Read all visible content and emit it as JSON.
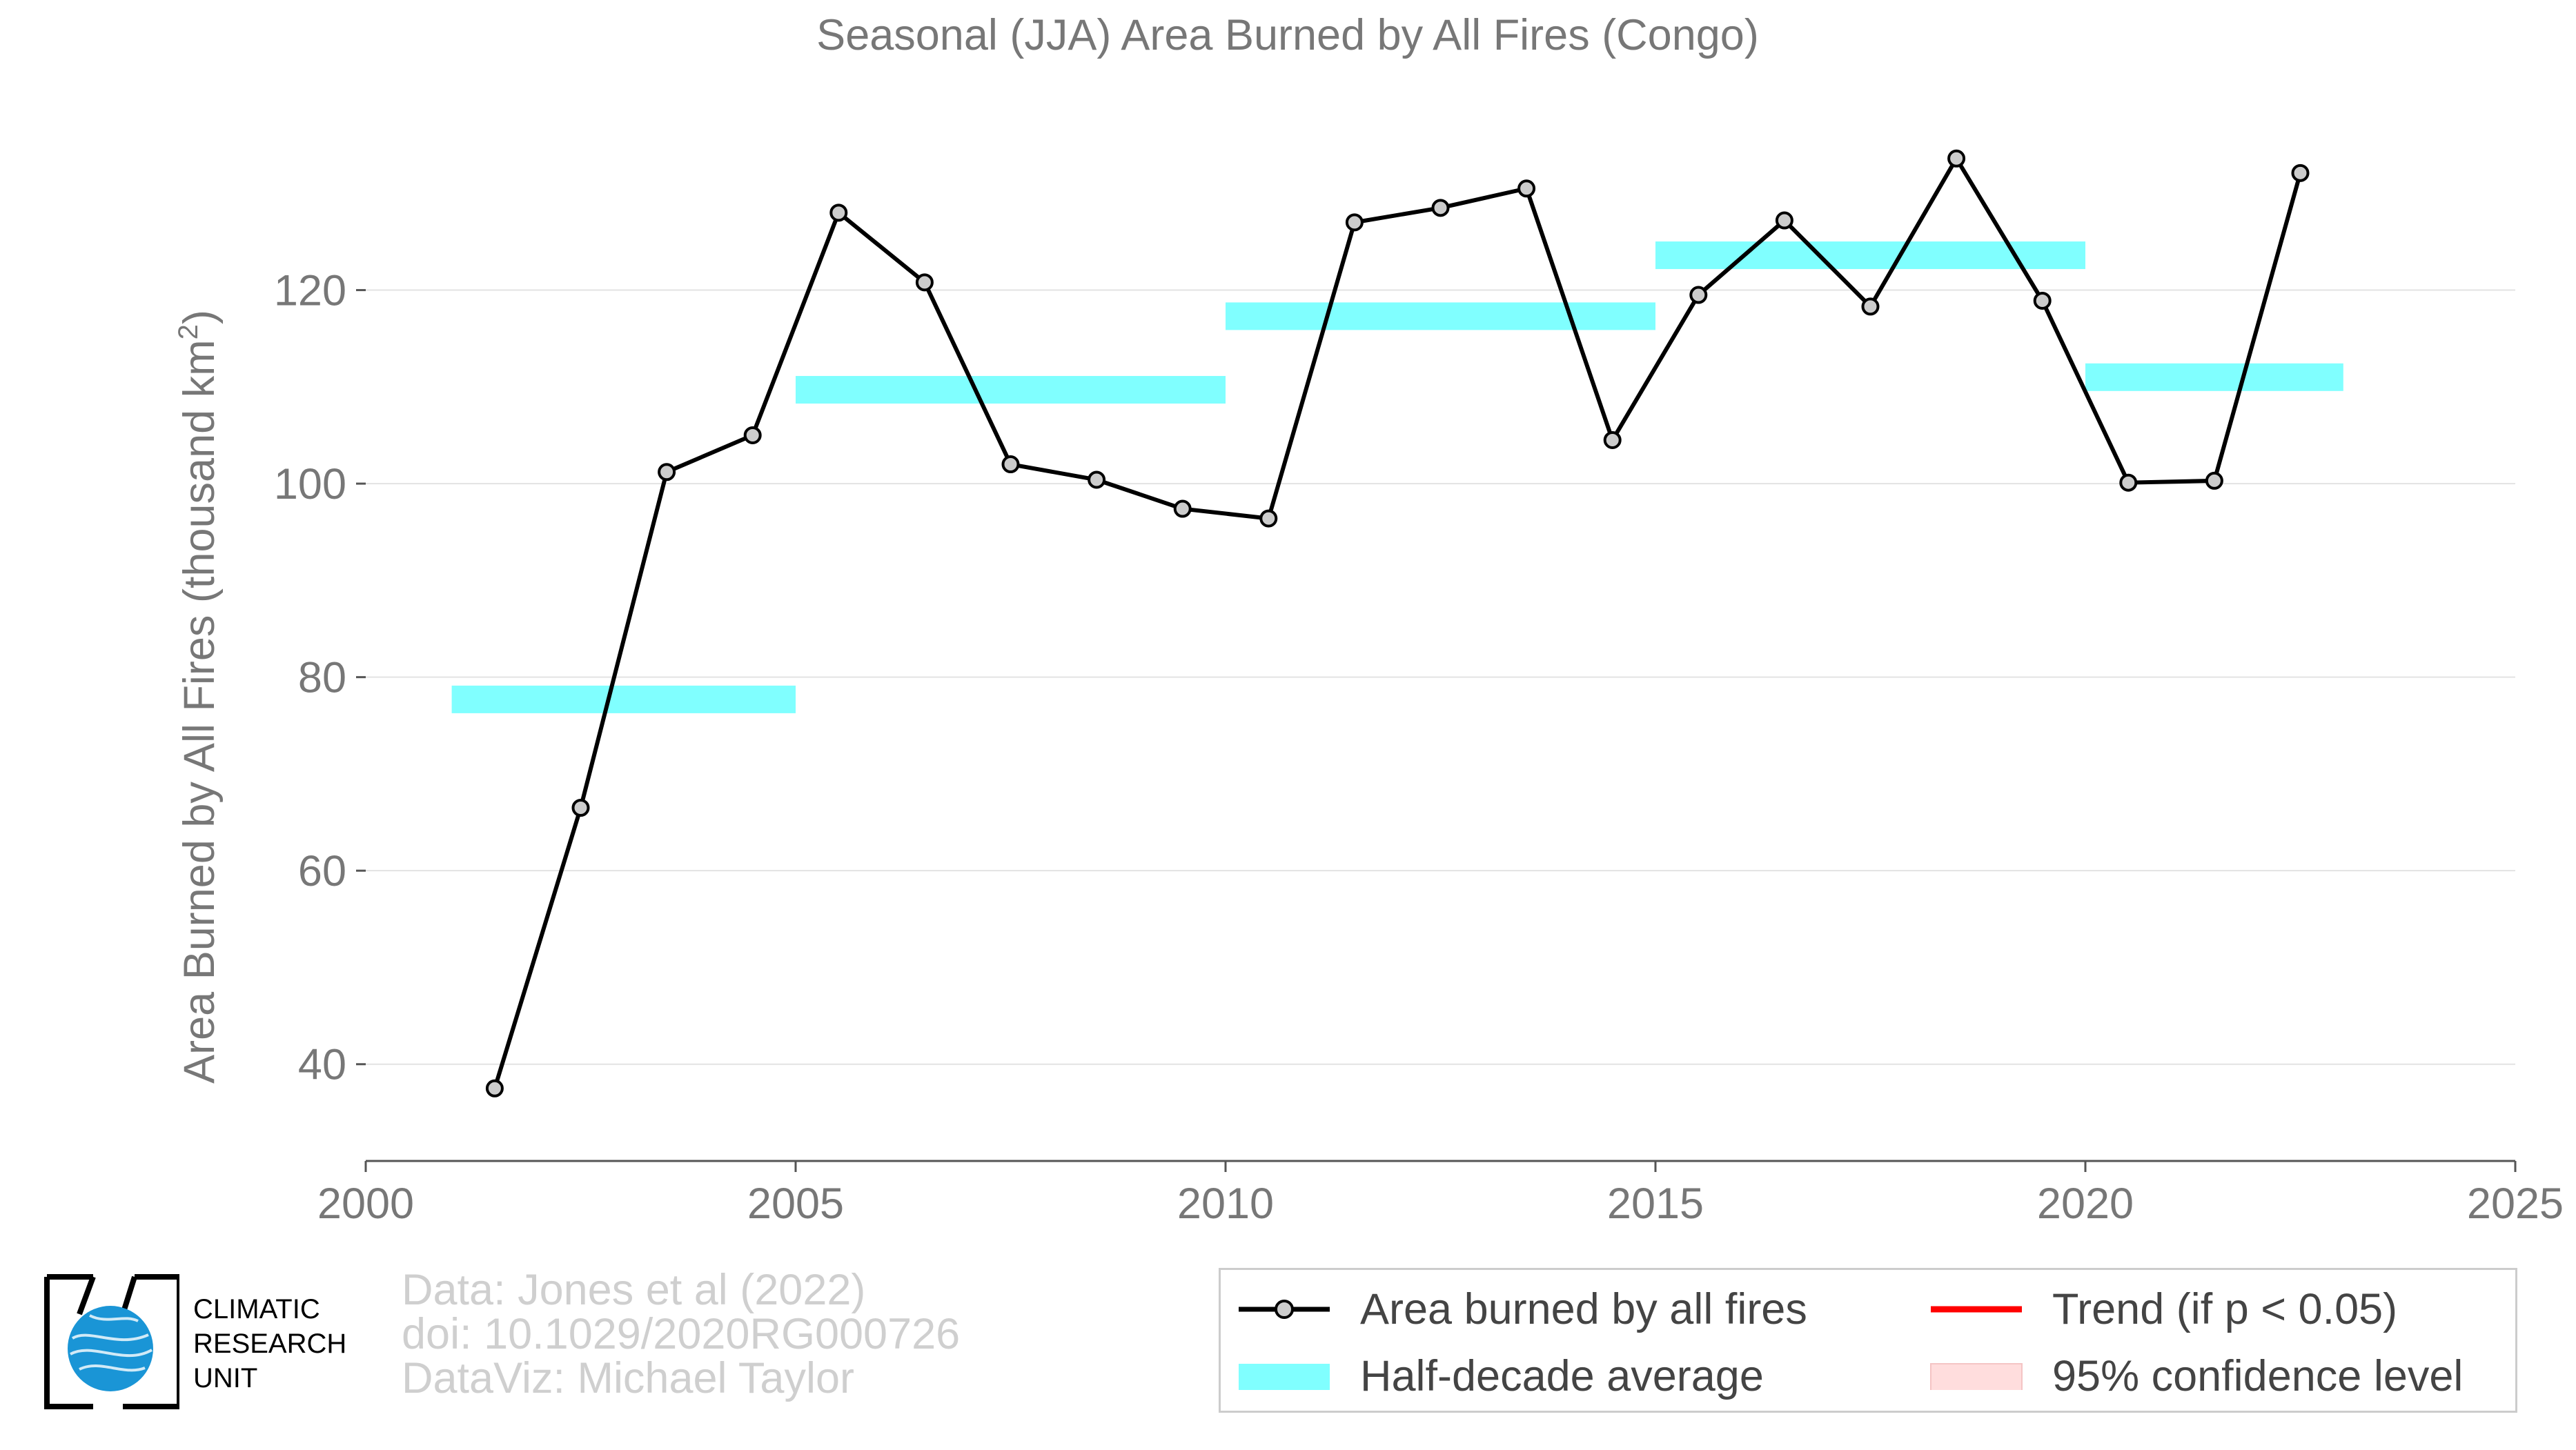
{
  "chart_data": {
    "type": "line",
    "title": "Seasonal (JJA) Area Burned by All Fires (Congo)",
    "ylabel": "Area Burned by All Fires (thousand km",
    "ylabel_sup": "2",
    "ylabel_close": ")",
    "xlabel": "",
    "xlim": [
      2000,
      2025
    ],
    "ylim": [
      30,
      140
    ],
    "xticks": [
      2000,
      2005,
      2010,
      2015,
      2020,
      2025
    ],
    "yticks": [
      40,
      60,
      80,
      100,
      120
    ],
    "grid": "horizontal",
    "series": [
      {
        "name": "Area burned by all fires",
        "x": [
          2001.5,
          2002.5,
          2003.5,
          2004.5,
          2005.5,
          2006.5,
          2007.5,
          2008.5,
          2009.5,
          2010.5,
          2011.5,
          2012.5,
          2013.5,
          2014.5,
          2015.5,
          2016.5,
          2017.5,
          2018.5,
          2019.5,
          2020.5,
          2021.5,
          2022.5
        ],
        "y": [
          37.5,
          66.5,
          101.2,
          105.0,
          128.0,
          120.8,
          102.0,
          100.4,
          97.4,
          96.4,
          127.0,
          128.5,
          130.5,
          104.5,
          119.5,
          127.2,
          118.3,
          133.6,
          118.9,
          100.1,
          100.3,
          132.1
        ],
        "color": "#000000"
      }
    ],
    "half_decade_average": {
      "name": "Half-decade average",
      "color": "#80ffff",
      "segments": [
        {
          "x0": 2001,
          "x1": 2005,
          "y": 77.7
        },
        {
          "x0": 2005,
          "x1": 2010,
          "y": 109.7
        },
        {
          "x0": 2010,
          "x1": 2015,
          "y": 117.3
        },
        {
          "x0": 2015,
          "x1": 2020,
          "y": 123.6
        },
        {
          "x0": 2020,
          "x1": 2023,
          "y": 111.0
        }
      ]
    },
    "legend": {
      "position": "bottom-right",
      "entries": [
        {
          "label": "Area burned by all fires",
          "kind": "line-marker",
          "color": "#000000"
        },
        {
          "label": "Trend (if p < 0.05)",
          "kind": "line",
          "color": "#ff0000"
        },
        {
          "label": "Half-decade average",
          "kind": "band",
          "color": "#80ffff"
        },
        {
          "label": "95% confidence level",
          "kind": "band",
          "color": "#ffdddd"
        }
      ]
    }
  },
  "footer": {
    "line1": "Data: Jones et al (2022)",
    "line2": "doi: 10.1029/2020RG000726",
    "line3": "DataViz: Michael Taylor"
  },
  "logo": {
    "line1": "CLIMATIC",
    "line2": "RESEARCH",
    "line3": "UNIT"
  }
}
